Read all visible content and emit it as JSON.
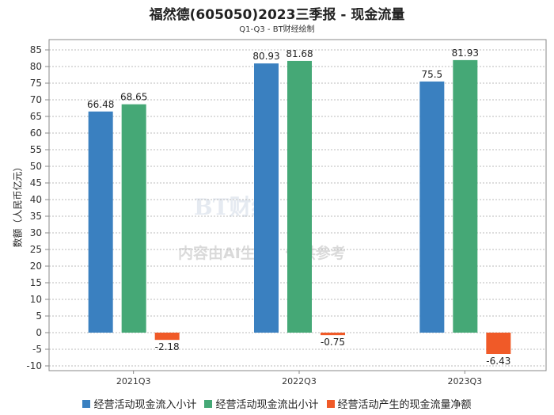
{
  "chart_data": {
    "type": "bar",
    "title": "福然德(605050)2023三季报 - 现金流量",
    "subtitle": "Q1-Q3 - BT财经绘制",
    "ylabel": "数额（人民币亿元）",
    "xlabel": "",
    "categories": [
      "2021Q3",
      "2022Q3",
      "2023Q3"
    ],
    "ylim": [
      -10,
      85
    ],
    "yticks": [
      -10,
      -5,
      0,
      5,
      10,
      15,
      20,
      25,
      30,
      35,
      40,
      45,
      50,
      55,
      60,
      65,
      70,
      75,
      80,
      85
    ],
    "grid": true,
    "legend": "bottom",
    "series": [
      {
        "name": "经营活动现金流入小计",
        "color": "#3a80c0",
        "values": [
          66.48,
          80.93,
          75.5
        ]
      },
      {
        "name": "经营活动现金流出小计",
        "color": "#45a876",
        "values": [
          68.65,
          81.68,
          81.93
        ]
      },
      {
        "name": "经营活动产生的现金流量净额",
        "color": "#f05a28",
        "values": [
          -2.18,
          -0.75,
          -6.43
        ]
      }
    ]
  },
  "watermark": {
    "logo": "BT财经 BUSINESS TIMES",
    "text": "内容由AI生成，仅供参考"
  }
}
